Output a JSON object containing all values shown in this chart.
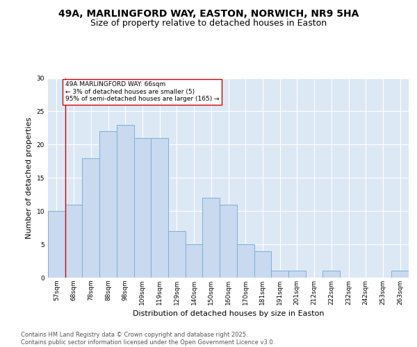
{
  "title_line1": "49A, MARLINGFORD WAY, EASTON, NORWICH, NR9 5HA",
  "title_line2": "Size of property relative to detached houses in Easton",
  "xlabel": "Distribution of detached houses by size in Easton",
  "ylabel": "Number of detached properties",
  "categories": [
    "57sqm",
    "68sqm",
    "78sqm",
    "88sqm",
    "98sqm",
    "109sqm",
    "119sqm",
    "129sqm",
    "140sqm",
    "150sqm",
    "160sqm",
    "170sqm",
    "181sqm",
    "191sqm",
    "201sqm",
    "212sqm",
    "222sqm",
    "232sqm",
    "242sqm",
    "253sqm",
    "263sqm"
  ],
  "values": [
    10,
    11,
    18,
    22,
    23,
    21,
    21,
    7,
    5,
    12,
    11,
    5,
    4,
    1,
    1,
    0,
    1,
    0,
    0,
    0,
    1
  ],
  "bar_color": "#c9d9f0",
  "bar_edge_color": "#7bafd4",
  "vline_x_idx": 0,
  "vline_color": "#cc0000",
  "annotation_text": "49A MARLINGFORD WAY: 66sqm\n← 3% of detached houses are smaller (5)\n95% of semi-detached houses are larger (165) →",
  "annotation_box_color": "#ffffff",
  "annotation_box_edge_color": "#cc0000",
  "ylim": [
    0,
    30
  ],
  "yticks": [
    0,
    5,
    10,
    15,
    20,
    25,
    30
  ],
  "footer_text": "Contains HM Land Registry data © Crown copyright and database right 2025.\nContains public sector information licensed under the Open Government Licence v3.0.",
  "fig_bg_color": "#ffffff",
  "plot_bg_color": "#dde8f5",
  "grid_color": "#ffffff",
  "title_fontsize": 10,
  "subtitle_fontsize": 9,
  "tick_fontsize": 6.5,
  "label_fontsize": 8,
  "footer_fontsize": 6,
  "annotation_fontsize": 6.5
}
